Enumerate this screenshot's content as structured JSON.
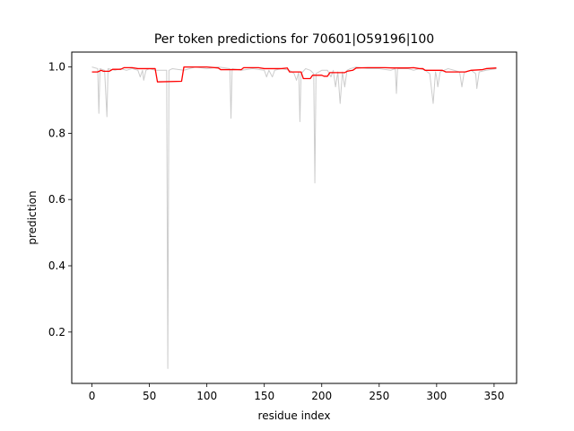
{
  "chart_data": {
    "type": "line",
    "title": "Per token predictions for 70601|O59196|100",
    "xlabel": "residue index",
    "ylabel": "prediction",
    "xlim": [
      -17.6,
      369.6
    ],
    "ylim": [
      0.045,
      1.045
    ],
    "xticks": [
      0,
      50,
      100,
      150,
      200,
      250,
      300,
      350
    ],
    "yticks": [
      0.2,
      0.4,
      0.6,
      0.8,
      1.0
    ],
    "xtick_labels": [
      "0",
      "50",
      "100",
      "150",
      "200",
      "250",
      "300",
      "350"
    ],
    "ytick_labels": [
      "0.2",
      "0.4",
      "0.6",
      "0.8",
      "1.0"
    ],
    "grid": false,
    "series": [
      {
        "color": "#cccccc",
        "points": [
          [
            0,
            1.0
          ],
          [
            5,
            0.995
          ],
          [
            6,
            0.86
          ],
          [
            7,
            0.995
          ],
          [
            11,
            0.99
          ],
          [
            13,
            0.85
          ],
          [
            14,
            0.995
          ],
          [
            20,
            0.99
          ],
          [
            25,
            0.995
          ],
          [
            30,
            0.99
          ],
          [
            35,
            0.995
          ],
          [
            40,
            0.99
          ],
          [
            42,
            0.97
          ],
          [
            44,
            0.99
          ],
          [
            45,
            0.96
          ],
          [
            47,
            0.99
          ],
          [
            50,
            0.995
          ],
          [
            55,
            0.99
          ],
          [
            60,
            0.99
          ],
          [
            65,
            0.99
          ],
          [
            66,
            0.09
          ],
          [
            67,
            0.99
          ],
          [
            70,
            0.995
          ],
          [
            80,
            0.99
          ],
          [
            90,
            1.0
          ],
          [
            100,
            0.995
          ],
          [
            110,
            1.0
          ],
          [
            120,
            0.995
          ],
          [
            121,
            0.845
          ],
          [
            122,
            0.995
          ],
          [
            130,
            0.99
          ],
          [
            140,
            0.995
          ],
          [
            150,
            0.99
          ],
          [
            152,
            0.97
          ],
          [
            154,
            0.99
          ],
          [
            157,
            0.97
          ],
          [
            159,
            0.99
          ],
          [
            165,
            0.995
          ],
          [
            172,
            0.99
          ],
          [
            176,
            0.98
          ],
          [
            178,
            0.96
          ],
          [
            180,
            0.985
          ],
          [
            181,
            0.835
          ],
          [
            182,
            0.98
          ],
          [
            186,
            0.995
          ],
          [
            190,
            0.99
          ],
          [
            193,
            0.98
          ],
          [
            194,
            0.65
          ],
          [
            195,
            0.98
          ],
          [
            200,
            0.99
          ],
          [
            205,
            0.99
          ],
          [
            208,
            0.97
          ],
          [
            210,
            0.99
          ],
          [
            212,
            0.94
          ],
          [
            214,
            0.985
          ],
          [
            216,
            0.89
          ],
          [
            218,
            0.985
          ],
          [
            220,
            0.94
          ],
          [
            222,
            0.99
          ],
          [
            225,
            0.995
          ],
          [
            230,
            1.0
          ],
          [
            240,
            0.995
          ],
          [
            250,
            0.995
          ],
          [
            260,
            0.99
          ],
          [
            264,
            0.995
          ],
          [
            265,
            0.92
          ],
          [
            266,
            0.995
          ],
          [
            275,
            0.995
          ],
          [
            280,
            0.99
          ],
          [
            285,
            0.995
          ],
          [
            290,
            0.99
          ],
          [
            294,
            0.98
          ],
          [
            297,
            0.89
          ],
          [
            299,
            0.985
          ],
          [
            300,
            0.97
          ],
          [
            301,
            0.94
          ],
          [
            303,
            0.985
          ],
          [
            310,
            0.995
          ],
          [
            315,
            0.99
          ],
          [
            320,
            0.985
          ],
          [
            322,
            0.94
          ],
          [
            324,
            0.985
          ],
          [
            330,
            0.99
          ],
          [
            334,
            0.98
          ],
          [
            335,
            0.935
          ],
          [
            337,
            0.985
          ],
          [
            343,
            0.99
          ],
          [
            352,
            0.995
          ]
        ]
      },
      {
        "color": "#ff0000",
        "points": [
          [
            0,
            0.985
          ],
          [
            5,
            0.985
          ],
          [
            8,
            0.99
          ],
          [
            10,
            0.987
          ],
          [
            15,
            0.987
          ],
          [
            18,
            0.993
          ],
          [
            25,
            0.993
          ],
          [
            28,
            0.998
          ],
          [
            35,
            0.998
          ],
          [
            40,
            0.995
          ],
          [
            55,
            0.995
          ],
          [
            57,
            0.955
          ],
          [
            78,
            0.957
          ],
          [
            80,
            1.0
          ],
          [
            100,
            1.0
          ],
          [
            110,
            0.997
          ],
          [
            112,
            0.992
          ],
          [
            130,
            0.992
          ],
          [
            132,
            0.998
          ],
          [
            145,
            0.998
          ],
          [
            150,
            0.995
          ],
          [
            165,
            0.995
          ],
          [
            170,
            0.997
          ],
          [
            172,
            0.985
          ],
          [
            182,
            0.985
          ],
          [
            184,
            0.965
          ],
          [
            190,
            0.965
          ],
          [
            192,
            0.975
          ],
          [
            200,
            0.975
          ],
          [
            202,
            0.972
          ],
          [
            205,
            0.972
          ],
          [
            207,
            0.983
          ],
          [
            220,
            0.983
          ],
          [
            222,
            0.987
          ],
          [
            227,
            0.99
          ],
          [
            230,
            0.997
          ],
          [
            240,
            0.998
          ],
          [
            255,
            0.998
          ],
          [
            262,
            0.997
          ],
          [
            275,
            0.997
          ],
          [
            280,
            0.998
          ],
          [
            285,
            0.995
          ],
          [
            288,
            0.995
          ],
          [
            290,
            0.99
          ],
          [
            305,
            0.99
          ],
          [
            308,
            0.985
          ],
          [
            325,
            0.985
          ],
          [
            330,
            0.99
          ],
          [
            340,
            0.992
          ],
          [
            343,
            0.995
          ],
          [
            352,
            0.997
          ]
        ]
      }
    ]
  }
}
